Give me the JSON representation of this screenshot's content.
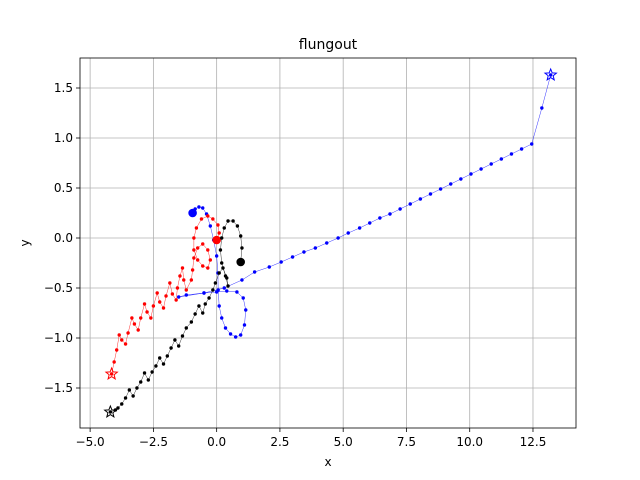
{
  "chart_data": {
    "type": "line",
    "title": "flungout",
    "xlabel": "x",
    "ylabel": "y",
    "xlim": [
      -5.4,
      14.2
    ],
    "ylim": [
      -1.9,
      1.8
    ],
    "xticks": [
      -5.0,
      -2.5,
      0.0,
      2.5,
      5.0,
      7.5,
      10.0,
      12.5
    ],
    "xtick_labels": [
      "−5.0",
      "−2.5",
      "0.0",
      "2.5",
      "5.0",
      "7.5",
      "10.0",
      "12.5"
    ],
    "yticks": [
      -1.5,
      -1.0,
      -0.5,
      0.0,
      0.5,
      1.0,
      1.5
    ],
    "ytick_labels": [
      "−1.5",
      "−1.0",
      "−0.5",
      "0.0",
      "0.5",
      "1.0",
      "1.5"
    ],
    "grid": true,
    "series": [
      {
        "color": "#0000ff",
        "start": [
          -0.95,
          0.25
        ],
        "end": [
          13.2,
          1.63
        ],
        "points": [
          [
            -0.95,
            0.25
          ],
          [
            -0.85,
            0.29
          ],
          [
            -0.7,
            0.31
          ],
          [
            -0.55,
            0.3
          ],
          [
            -0.4,
            0.24
          ],
          [
            -0.25,
            0.12
          ],
          [
            -0.12,
            -0.02
          ],
          [
            0.0,
            -0.18
          ],
          [
            0.05,
            -0.35
          ],
          [
            0.06,
            -0.52
          ],
          [
            0.1,
            -0.68
          ],
          [
            0.2,
            -0.8
          ],
          [
            0.35,
            -0.9
          ],
          [
            0.55,
            -0.96
          ],
          [
            0.75,
            -0.99
          ],
          [
            0.95,
            -0.97
          ],
          [
            1.1,
            -0.87
          ],
          [
            1.15,
            -0.72
          ],
          [
            1.05,
            -0.6
          ],
          [
            0.8,
            -0.54
          ],
          [
            0.4,
            -0.53
          ],
          [
            0.0,
            -0.54
          ],
          [
            -0.5,
            -0.55
          ],
          [
            -1.2,
            -0.57
          ],
          [
            -1.5,
            -0.59
          ],
          [
            -0.5,
            -0.55
          ],
          [
            0.3,
            -0.5
          ],
          [
            1.0,
            -0.42
          ],
          [
            1.5,
            -0.34
          ],
          [
            2.08,
            -0.29
          ],
          [
            2.55,
            -0.24
          ],
          [
            3.0,
            -0.19
          ],
          [
            3.45,
            -0.14
          ],
          [
            3.9,
            -0.1
          ],
          [
            4.35,
            -0.05
          ],
          [
            4.8,
            0.0
          ],
          [
            5.2,
            0.05
          ],
          [
            5.65,
            0.1
          ],
          [
            6.05,
            0.15
          ],
          [
            6.45,
            0.2
          ],
          [
            6.85,
            0.24
          ],
          [
            7.25,
            0.29
          ],
          [
            7.65,
            0.34
          ],
          [
            8.05,
            0.39
          ],
          [
            8.45,
            0.44
          ],
          [
            8.85,
            0.49
          ],
          [
            9.25,
            0.54
          ],
          [
            9.65,
            0.59
          ],
          [
            10.05,
            0.64
          ],
          [
            10.45,
            0.69
          ],
          [
            10.85,
            0.74
          ],
          [
            11.25,
            0.79
          ],
          [
            11.65,
            0.84
          ],
          [
            12.05,
            0.89
          ],
          [
            12.45,
            0.94
          ],
          [
            12.85,
            1.3
          ],
          [
            13.2,
            1.63
          ]
        ]
      },
      {
        "color": "#ff0000",
        "start": [
          0.0,
          -0.02
        ],
        "end": [
          -4.15,
          -1.36
        ],
        "points": [
          [
            0.0,
            -0.02
          ],
          [
            0.1,
            0.05
          ],
          [
            0.05,
            0.13
          ],
          [
            -0.15,
            0.19
          ],
          [
            -0.35,
            0.22
          ],
          [
            -0.6,
            0.19
          ],
          [
            -0.8,
            0.1
          ],
          [
            -0.9,
            0.0
          ],
          [
            -0.9,
            -0.12
          ],
          [
            -0.75,
            -0.22
          ],
          [
            -0.55,
            -0.28
          ],
          [
            -0.35,
            -0.3
          ],
          [
            -0.25,
            -0.22
          ],
          [
            -0.35,
            -0.12
          ],
          [
            -0.55,
            -0.06
          ],
          [
            -0.75,
            -0.1
          ],
          [
            -0.9,
            -0.2
          ],
          [
            -0.95,
            -0.32
          ],
          [
            -1.0,
            -0.42
          ],
          [
            -1.2,
            -0.52
          ],
          [
            -1.3,
            -0.42
          ],
          [
            -1.35,
            -0.3
          ],
          [
            -1.45,
            -0.38
          ],
          [
            -1.55,
            -0.5
          ],
          [
            -1.6,
            -0.62
          ],
          [
            -1.75,
            -0.56
          ],
          [
            -1.85,
            -0.45
          ],
          [
            -2.0,
            -0.58
          ],
          [
            -2.1,
            -0.7
          ],
          [
            -2.25,
            -0.64
          ],
          [
            -2.35,
            -0.55
          ],
          [
            -2.5,
            -0.68
          ],
          [
            -2.6,
            -0.8
          ],
          [
            -2.75,
            -0.74
          ],
          [
            -2.85,
            -0.66
          ],
          [
            -3.0,
            -0.8
          ],
          [
            -3.1,
            -0.92
          ],
          [
            -3.25,
            -0.86
          ],
          [
            -3.35,
            -0.8
          ],
          [
            -3.5,
            -0.95
          ],
          [
            -3.6,
            -1.06
          ],
          [
            -3.75,
            -1.02
          ],
          [
            -3.85,
            -0.97
          ],
          [
            -3.95,
            -1.12
          ],
          [
            -4.05,
            -1.24
          ],
          [
            -4.15,
            -1.36
          ]
        ]
      },
      {
        "color": "#000000",
        "start": [
          0.95,
          -0.24
        ],
        "end": [
          -4.2,
          -1.74
        ],
        "points": [
          [
            0.95,
            -0.24
          ],
          [
            1.0,
            -0.1
          ],
          [
            0.95,
            0.02
          ],
          [
            0.82,
            0.12
          ],
          [
            0.65,
            0.17
          ],
          [
            0.45,
            0.17
          ],
          [
            0.3,
            0.1
          ],
          [
            0.2,
            0.0
          ],
          [
            0.15,
            -0.12
          ],
          [
            0.2,
            -0.25
          ],
          [
            0.35,
            -0.38
          ],
          [
            0.45,
            -0.48
          ],
          [
            0.4,
            -0.4
          ],
          [
            0.25,
            -0.3
          ],
          [
            0.1,
            -0.35
          ],
          [
            -0.05,
            -0.45
          ],
          [
            -0.15,
            -0.52
          ],
          [
            -0.3,
            -0.6
          ],
          [
            -0.45,
            -0.66
          ],
          [
            -0.55,
            -0.75
          ],
          [
            -0.7,
            -0.68
          ],
          [
            -0.85,
            -0.76
          ],
          [
            -1.0,
            -0.84
          ],
          [
            -1.2,
            -0.9
          ],
          [
            -1.35,
            -0.98
          ],
          [
            -1.5,
            -1.08
          ],
          [
            -1.65,
            -1.02
          ],
          [
            -1.8,
            -1.1
          ],
          [
            -1.95,
            -1.18
          ],
          [
            -2.1,
            -1.26
          ],
          [
            -2.25,
            -1.2
          ],
          [
            -2.4,
            -1.28
          ],
          [
            -2.55,
            -1.34
          ],
          [
            -2.7,
            -1.42
          ],
          [
            -2.85,
            -1.35
          ],
          [
            -3.0,
            -1.44
          ],
          [
            -3.15,
            -1.5
          ],
          [
            -3.3,
            -1.58
          ],
          [
            -3.45,
            -1.52
          ],
          [
            -3.6,
            -1.6
          ],
          [
            -3.75,
            -1.66
          ],
          [
            -3.9,
            -1.7
          ],
          [
            -4.0,
            -1.72
          ],
          [
            -4.2,
            -1.74
          ]
        ]
      }
    ]
  }
}
